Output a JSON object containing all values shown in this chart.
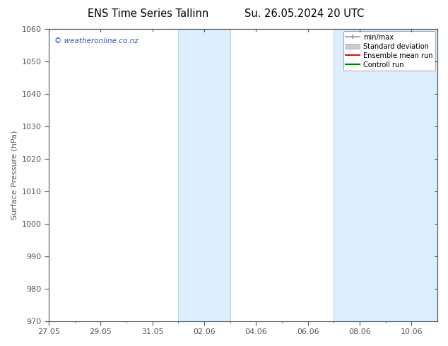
{
  "title_left": "ENS Time Series Tallinn",
  "title_right": "Su. 26.05.2024 20 UTC",
  "ylabel": "Surface Pressure (hPa)",
  "ylim": [
    970,
    1060
  ],
  "yticks": [
    970,
    980,
    990,
    1000,
    1010,
    1020,
    1030,
    1040,
    1050,
    1060
  ],
  "x_start": "2024-05-27",
  "x_end": "2024-06-11",
  "xtick_labels": [
    "27.05",
    "29.05",
    "31.05",
    "02.06",
    "04.06",
    "06.06",
    "08.06",
    "10.06"
  ],
  "xtick_positions_days": [
    0,
    2,
    4,
    6,
    8,
    10,
    12,
    14
  ],
  "shaded_bands": [
    {
      "start_day": 5,
      "end_day": 7
    },
    {
      "start_day": 11,
      "end_day": 15
    }
  ],
  "shaded_color": "#ddeeff",
  "shaded_edge_color": "#b8d4ea",
  "watermark_text": "© weatheronline.co.nz",
  "watermark_color": "#3355bb",
  "legend_items": [
    {
      "label": "min/max",
      "color": "#aaaaaa",
      "style": "line_with_caps"
    },
    {
      "label": "Standard deviation",
      "color": "#cccccc",
      "style": "bar"
    },
    {
      "label": "Ensemble mean run",
      "color": "red",
      "style": "line"
    },
    {
      "label": "Controll run",
      "color": "green",
      "style": "line"
    }
  ],
  "bg_color": "#ffffff",
  "plot_bg_color": "#ffffff",
  "tick_color": "#555555",
  "spine_color": "#555555",
  "font_size": 8,
  "title_font_size": 10.5
}
